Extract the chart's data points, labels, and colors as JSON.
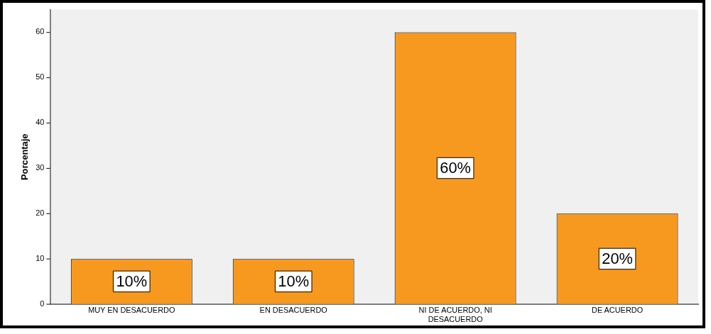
{
  "chart_data": {
    "type": "bar",
    "ylabel": "Porcentaje",
    "categories": [
      "MUY EN DESACUERDO",
      "EN DESACUERDO",
      "NI DE ACUERDO, NI DESACUERDO",
      "DE ACUERDO"
    ],
    "values": [
      10,
      10,
      60,
      20
    ],
    "color": "#f7991f",
    "value_labels": [
      "10%",
      "10%",
      "60%",
      "20%"
    ],
    "ylim": [
      0,
      65
    ],
    "yticks": [
      0,
      10,
      20,
      30,
      40,
      50,
      60
    ],
    "grid": false,
    "legend": false
  }
}
